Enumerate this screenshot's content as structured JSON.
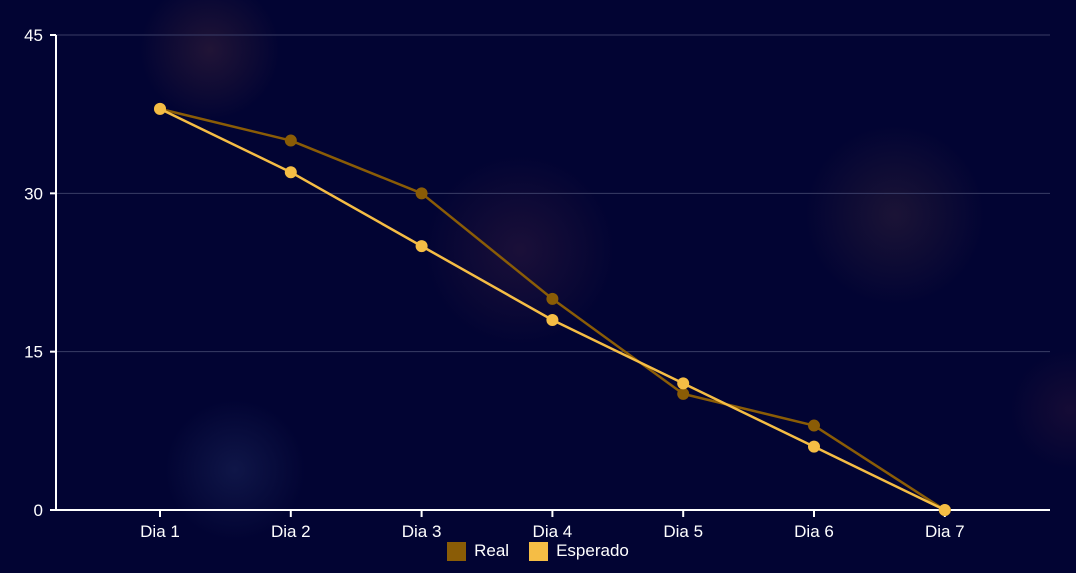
{
  "chart_data": {
    "type": "line",
    "categories": [
      "Dia 1",
      "Dia 2",
      "Dia 3",
      "Dia 4",
      "Dia 5",
      "Dia 6",
      "Dia 7"
    ],
    "ylim": [
      0,
      45
    ],
    "yticks": [
      "0",
      "15",
      "30",
      "45"
    ],
    "grid": true,
    "legend_position": "bottom",
    "series": [
      {
        "name": "Real",
        "color": "#8a5c06",
        "values": [
          38,
          35,
          30,
          20,
          11,
          8,
          0
        ]
      },
      {
        "name": "Esperado",
        "color": "#f5bd45",
        "values": [
          38,
          32,
          25,
          18,
          12,
          6,
          0
        ]
      }
    ]
  },
  "colors": {
    "background": "#020433",
    "axis": "#ffffff",
    "grid": "#3a3d66"
  }
}
